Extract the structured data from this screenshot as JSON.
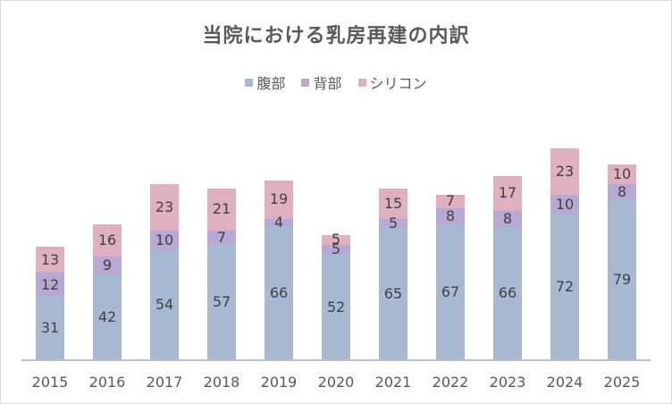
{
  "chart_data": {
    "type": "bar",
    "stacked": true,
    "title": "当院における乳房再建の内訳",
    "xlabel": "",
    "ylabel": "",
    "categories": [
      "2015",
      "2016",
      "2017",
      "2018",
      "2019",
      "2020",
      "2021",
      "2022",
      "2023",
      "2024",
      "2025"
    ],
    "series": [
      {
        "name": "腹部",
        "color": "#a6bbd3",
        "values": [
          31,
          42,
          54,
          57,
          66,
          52,
          65,
          67,
          66,
          72,
          79
        ]
      },
      {
        "name": "背部",
        "color": "#b8a8d4",
        "values": [
          12,
          9,
          10,
          7,
          4,
          5,
          5,
          8,
          8,
          10,
          8
        ]
      },
      {
        "name": "シリコン",
        "color": "#dfb0c0",
        "values": [
          13,
          16,
          23,
          21,
          19,
          5,
          15,
          7,
          17,
          23,
          10
        ]
      }
    ],
    "legend_position": "top",
    "grid": false,
    "data_labels": true,
    "ylim": [
      0,
      125
    ]
  }
}
